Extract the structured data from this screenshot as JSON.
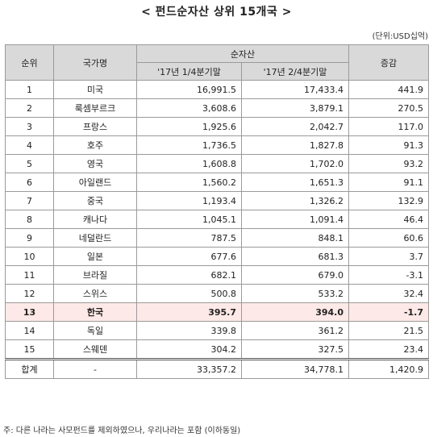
{
  "title": "< 펀드순자산 상위 15개국 >",
  "unit": "(단위:USD십억)",
  "headers": {
    "rank": "순위",
    "country": "국가명",
    "net_assets": "순자산",
    "q1": "'17년 1/4분기말",
    "q2": "'17년 2/4분기말",
    "change": "증감"
  },
  "rows": [
    {
      "rank": "1",
      "country": "미국",
      "q1": "16,991.5",
      "q2": "17,433.4",
      "change": "441.9"
    },
    {
      "rank": "2",
      "country": "룩셈부르크",
      "q1": "3,608.6",
      "q2": "3,879.1",
      "change": "270.5"
    },
    {
      "rank": "3",
      "country": "프랑스",
      "q1": "1,925.6",
      "q2": "2,042.7",
      "change": "117.0"
    },
    {
      "rank": "4",
      "country": "호주",
      "q1": "1,736.5",
      "q2": "1,827.8",
      "change": "91.3"
    },
    {
      "rank": "5",
      "country": "영국",
      "q1": "1,608.8",
      "q2": "1,702.0",
      "change": "93.2"
    },
    {
      "rank": "6",
      "country": "아일랜드",
      "q1": "1,560.2",
      "q2": "1,651.3",
      "change": "91.1"
    },
    {
      "rank": "7",
      "country": "중국",
      "q1": "1,193.4",
      "q2": "1,326.2",
      "change": "132.9"
    },
    {
      "rank": "8",
      "country": "캐나다",
      "q1": "1,045.1",
      "q2": "1,091.4",
      "change": "46.4"
    },
    {
      "rank": "9",
      "country": "네덜란드",
      "q1": "787.5",
      "q2": "848.1",
      "change": "60.6"
    },
    {
      "rank": "10",
      "country": "일본",
      "q1": "677.6",
      "q2": "681.3",
      "change": "3.7"
    },
    {
      "rank": "11",
      "country": "브라질",
      "q1": "682.1",
      "q2": "679.0",
      "change": "-3.1"
    },
    {
      "rank": "12",
      "country": "스위스",
      "q1": "500.8",
      "q2": "533.2",
      "change": "32.4"
    },
    {
      "rank": "13",
      "country": "한국",
      "q1": "395.7",
      "q2": "394.0",
      "change": "-1.7"
    },
    {
      "rank": "14",
      "country": "독일",
      "q1": "339.8",
      "q2": "361.2",
      "change": "21.5"
    },
    {
      "rank": "15",
      "country": "스웨덴",
      "q1": "304.2",
      "q2": "327.5",
      "change": "23.4"
    }
  ],
  "total": {
    "label": "합계",
    "country": "-",
    "q1": "33,357.2",
    "q2": "34,778.1",
    "change": "1,420.9"
  },
  "highlight_rank": "13",
  "highlight_color": "#fde9e7",
  "header_color": "#d9d9d9",
  "note": "주: 다른 나라는 사모펀드를 제외하였으나, 우리나라는 포함 (이하동일)"
}
